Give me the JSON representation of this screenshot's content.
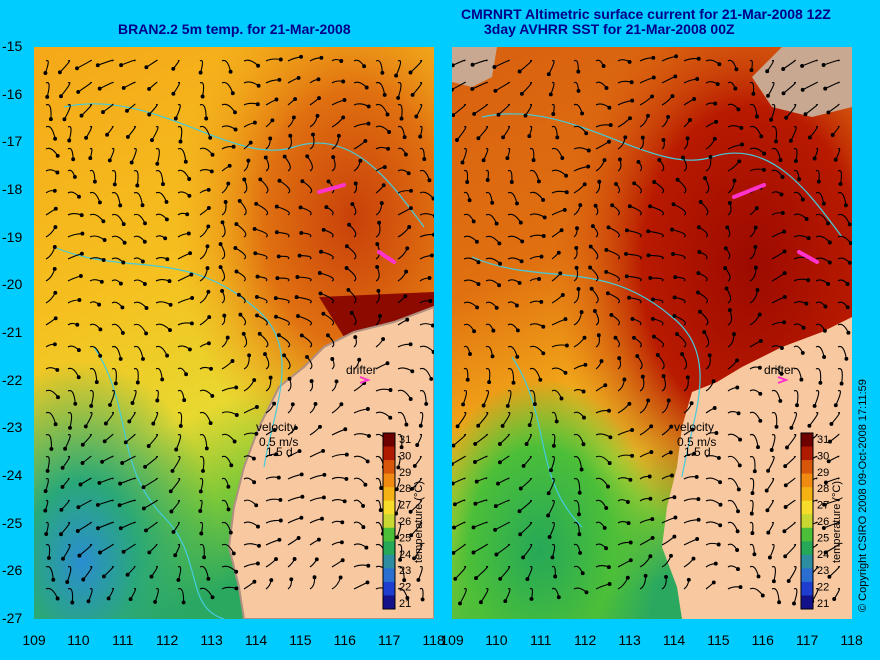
{
  "titles": {
    "left": "BRAN2.2 5m temp. for 21-Mar-2008",
    "right_line1": "CMRNRT Altimetric surface current for 21-Mar-2008 12Z",
    "right_line2": "3day AVHRR SST for 21-Mar-2008 00Z"
  },
  "axes": {
    "lat_ticks": [
      "-15",
      "-16",
      "-17",
      "-18",
      "-19",
      "-20",
      "-21",
      "-22",
      "-23",
      "-24",
      "-25",
      "-26",
      "-27"
    ],
    "lon_ticks": [
      "109",
      "110",
      "111",
      "112",
      "113",
      "114",
      "115",
      "116",
      "117",
      "118"
    ]
  },
  "labels": {
    "drifter": "drifter",
    "velocity": "velocity",
    "speed": "0.5 m/s",
    "duration": "1.5 d",
    "colorbar_title": "temperature (°C)"
  },
  "colorbar": {
    "ticks": [
      "31",
      "30",
      "29",
      "28",
      "27",
      "26",
      "25",
      "24",
      "23",
      "22",
      "21"
    ],
    "colors": [
      "#6e0000",
      "#b01a00",
      "#d8560a",
      "#f08a10",
      "#f5b214",
      "#f7dc2a",
      "#c8d830",
      "#4cbf38",
      "#25a858",
      "#2c8ea0",
      "#2a6fd0",
      "#1f3ecf",
      "#13128a"
    ]
  },
  "copyright": "© Copyright CSIRO 2008   09-Oct-2008 17:11:59",
  "colors": {
    "background": "#00ccff",
    "land": "#f8c8a0",
    "title": "#000088",
    "drifter": "#ff33cc",
    "isobath": "#44ccdd"
  }
}
